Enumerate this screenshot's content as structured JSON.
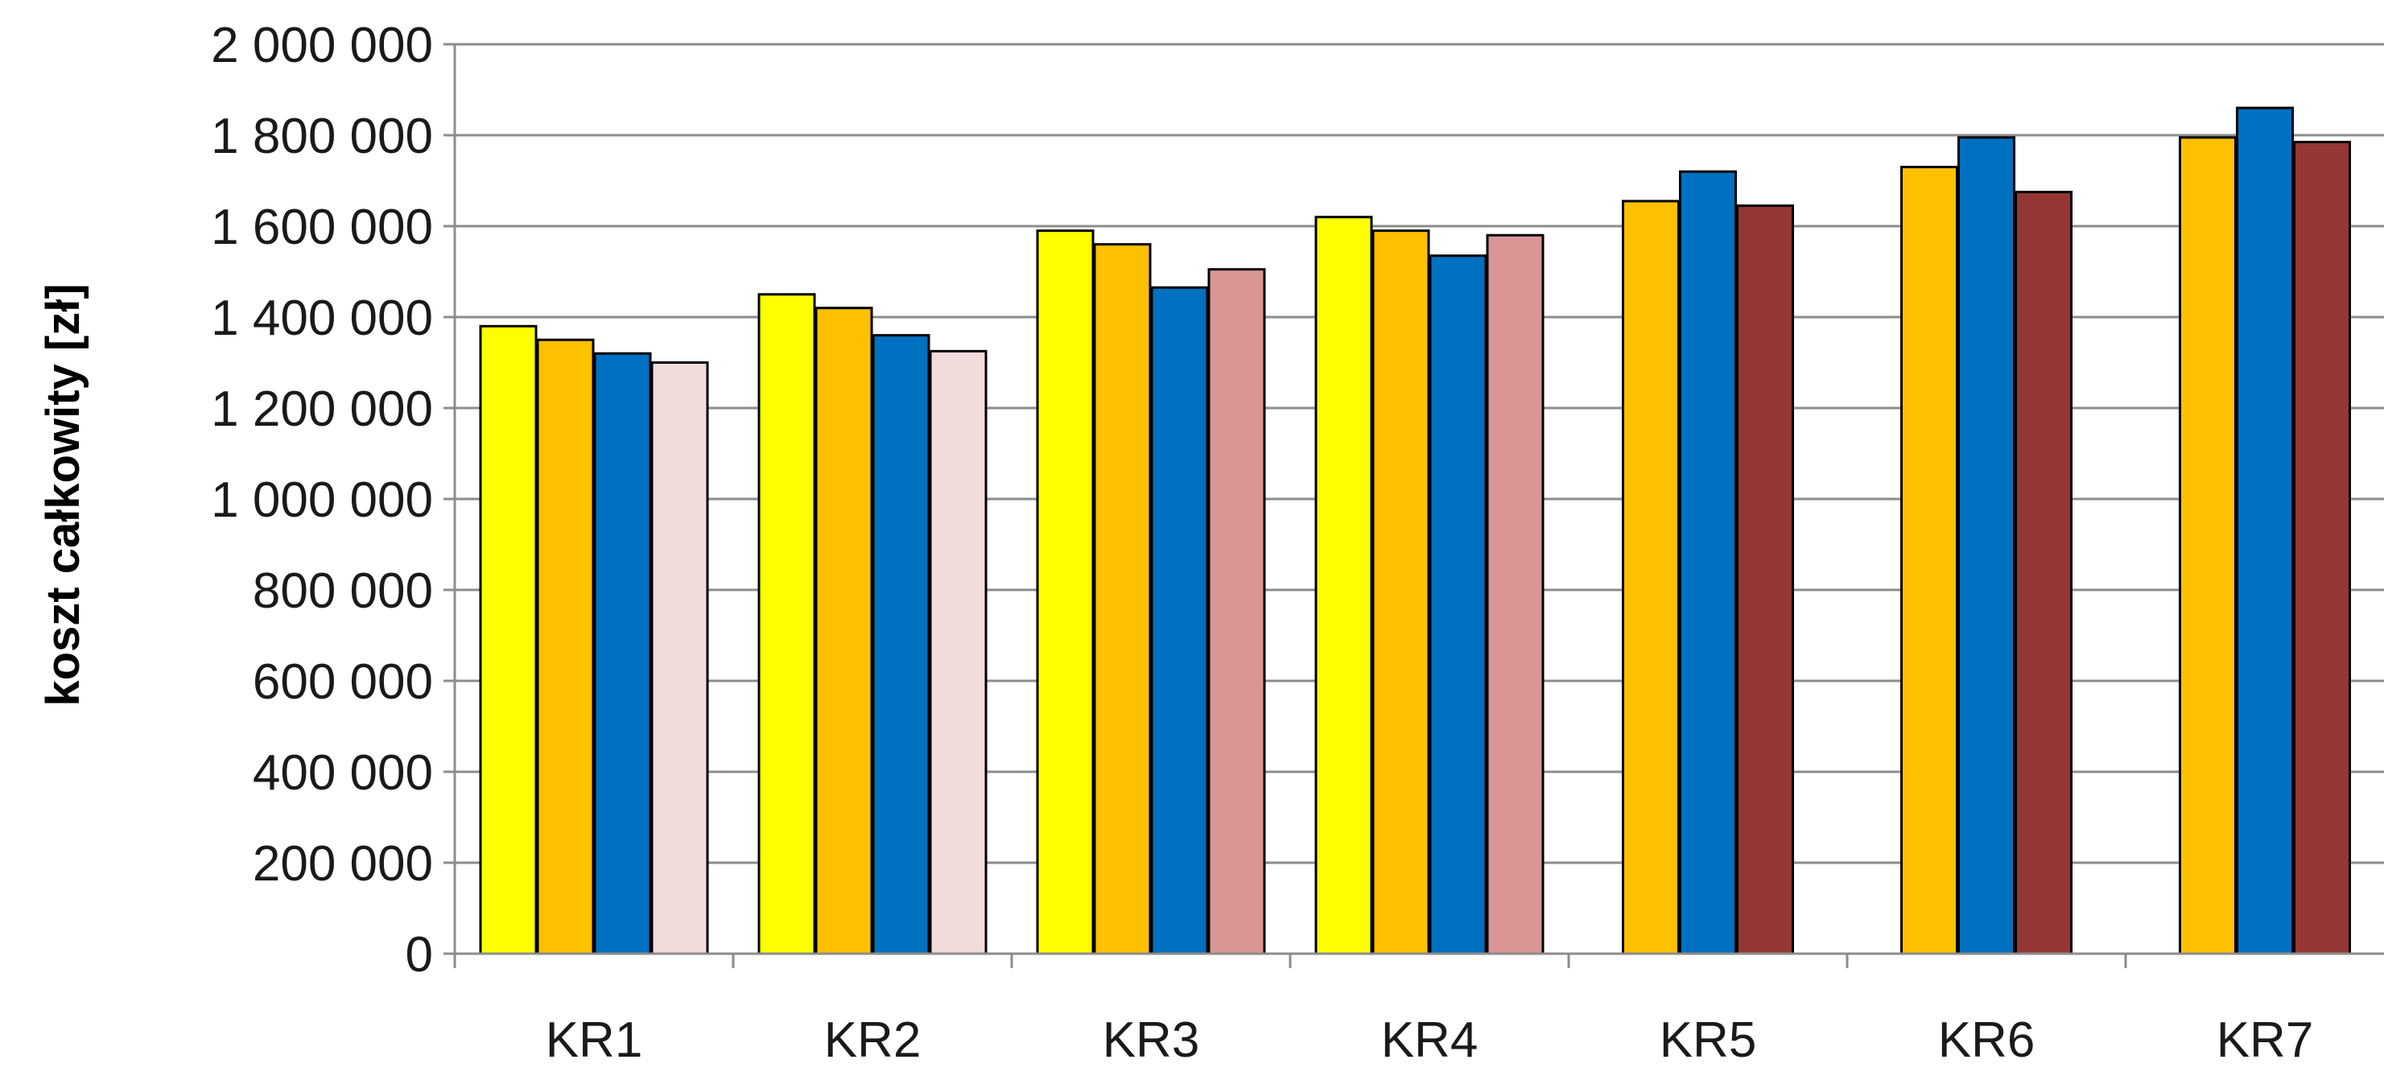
{
  "chart_data": {
    "type": "bar",
    "title": "",
    "xlabel": "",
    "ylabel": "koszt całkowity [zł]",
    "ylim": [
      0,
      2000000
    ],
    "yticks": [
      0,
      200000,
      400000,
      600000,
      800000,
      1000000,
      1200000,
      1400000,
      1600000,
      1800000,
      2000000
    ],
    "ytick_labels": [
      "0",
      "200 000",
      "400 000",
      "600 000",
      "800 000",
      "1 000 000",
      "1 200 000",
      "1 400 000",
      "1 600 000",
      "1 800 000",
      "2 000 000"
    ],
    "grid": true,
    "legend": "none",
    "categories": [
      "KR1",
      "KR2",
      "KR3",
      "KR4",
      "KR5",
      "KR6",
      "KR7"
    ],
    "series": [
      {
        "color": "#FFFF00",
        "values": [
          1380000,
          1450000,
          1590000,
          1620000,
          null,
          null,
          null
        ]
      },
      {
        "color": "#FFC000",
        "values": [
          1350000,
          1420000,
          1560000,
          1590000,
          1655000,
          1730000,
          1795000
        ]
      },
      {
        "color": "#0070C0",
        "values": [
          1320000,
          1360000,
          1465000,
          1535000,
          1720000,
          1795000,
          1860000
        ]
      },
      {
        "color": "#F2DCDB",
        "values": [
          1300000,
          1325000,
          null,
          null,
          null,
          null,
          null
        ]
      },
      {
        "color": "#D99694",
        "values": [
          null,
          null,
          1505000,
          1580000,
          null,
          null,
          null
        ]
      },
      {
        "color": "#953735",
        "values": [
          null,
          null,
          null,
          null,
          1645000,
          1675000,
          1785000
        ]
      }
    ]
  }
}
